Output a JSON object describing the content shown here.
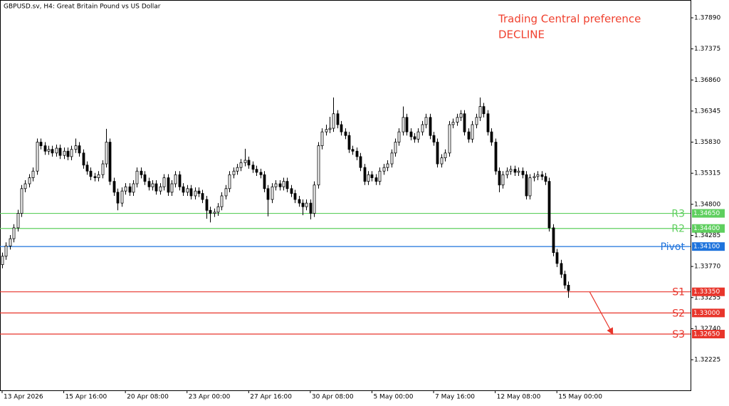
{
  "chart_data": {
    "type": "candlestick",
    "title": "GBPUSD.sv, H4:  Great Britain Pound vs US Dollar",
    "annotations": [
      "Trading Central preference",
      "DECLINE"
    ],
    "annotation_color": "#f0412f",
    "up_color": "#ffffff",
    "down_color": "#000000",
    "ylim": [
      1.31718,
      1.38185
    ],
    "yticks": [
      {
        "value": 1.3789,
        "label": "1.37890"
      },
      1.37375,
      {
        "value": 1.3686,
        "label": "1.36860"
      },
      1.36345,
      {
        "value": 1.3583,
        "label": "1.35830"
      },
      1.35315,
      {
        "value": 1.348,
        "label": "1.34800"
      },
      1.34285,
      {
        "value": 1.3377,
        "label": "1.33770"
      },
      1.33255,
      {
        "value": 1.3274,
        "label": "1.32740"
      },
      1.32225
    ],
    "xlim": [
      -0.55,
      178.7
    ],
    "xticks": [
      {
        "value": 0,
        "label": "13 Apr 2026"
      },
      {
        "value": 16,
        "label": "15 Apr 16:00"
      },
      {
        "value": 32,
        "label": "20 Apr 08:00"
      },
      {
        "value": 48,
        "label": "23 Apr 00:00"
      },
      {
        "value": 64,
        "label": "27 Apr 16:00"
      },
      {
        "value": 80,
        "label": "30 Apr 08:00"
      },
      {
        "value": 96,
        "label": "5 May 00:00"
      },
      {
        "value": 112,
        "label": "7 May 16:00"
      },
      {
        "value": 128,
        "label": "12 May 08:00"
      },
      {
        "value": 144,
        "label": "15 May 00:00"
      }
    ],
    "levels": [
      {
        "name": "R3",
        "value": 1.3465,
        "label": "1.34650",
        "color": "#5fcf5f"
      },
      {
        "name": "R2",
        "value": 1.344,
        "label": "1.34400",
        "color": "#5fcf5f"
      },
      {
        "name": "Pivot",
        "value": 1.341,
        "label": "1.34100",
        "color": "#1e73dc"
      },
      {
        "name": "S1",
        "value": 1.3335,
        "label": "1.33350",
        "color": "#e8352b"
      },
      {
        "name": "S2",
        "value": 1.33,
        "label": "1.33000",
        "color": "#e8352b"
      },
      {
        "name": "S3",
        "value": 1.3265,
        "label": "1.32650",
        "color": "#e8352b"
      }
    ],
    "ohlc": [
      [
        1.338,
        1.34,
        1.3374,
        1.3394
      ],
      [
        1.3394,
        1.3417,
        1.3388,
        1.3411
      ],
      [
        1.3411,
        1.3429,
        1.3405,
        1.3423
      ],
      [
        1.3423,
        1.3447,
        1.3417,
        1.3441
      ],
      [
        1.3441,
        1.3471,
        1.3435,
        1.3465
      ],
      [
        1.3465,
        1.3512,
        1.3459,
        1.3506
      ],
      [
        1.3506,
        1.352,
        1.35,
        1.3514
      ],
      [
        1.3514,
        1.353,
        1.3508,
        1.3524
      ],
      [
        1.3524,
        1.3541,
        1.3518,
        1.3535
      ],
      [
        1.3535,
        1.3589,
        1.3529,
        1.3583
      ],
      [
        1.3583,
        1.3589,
        1.3571,
        1.3577
      ],
      [
        1.3577,
        1.3583,
        1.3562,
        1.3568
      ],
      [
        1.3568,
        1.3577,
        1.3562,
        1.3571
      ],
      [
        1.3571,
        1.3577,
        1.3559,
        1.3565
      ],
      [
        1.3565,
        1.3579,
        1.3559,
        1.3573
      ],
      [
        1.3573,
        1.3579,
        1.3555,
        1.3561
      ],
      [
        1.3561,
        1.3574,
        1.3555,
        1.3568
      ],
      [
        1.3568,
        1.3574,
        1.3553,
        1.3559
      ],
      [
        1.3559,
        1.3577,
        1.3553,
        1.3571
      ],
      [
        1.3571,
        1.3589,
        1.3565,
        1.3577
      ],
      [
        1.3577,
        1.3583,
        1.3559,
        1.3565
      ],
      [
        1.3565,
        1.3571,
        1.3539,
        1.3545
      ],
      [
        1.3545,
        1.3551,
        1.3529,
        1.3535
      ],
      [
        1.3535,
        1.3541,
        1.352,
        1.3526
      ],
      [
        1.3526,
        1.3532,
        1.3518,
        1.3524
      ],
      [
        1.3524,
        1.3535,
        1.3518,
        1.3529
      ],
      [
        1.3529,
        1.3553,
        1.3523,
        1.3547
      ],
      [
        1.3547,
        1.3605,
        1.3541,
        1.3583
      ],
      [
        1.3583,
        1.3589,
        1.3512,
        1.3518
      ],
      [
        1.3518,
        1.3524,
        1.3494,
        1.35
      ],
      [
        1.35,
        1.3506,
        1.347,
        1.3482
      ],
      [
        1.3482,
        1.3508,
        1.3476,
        1.3502
      ],
      [
        1.3502,
        1.3515,
        1.3496,
        1.3509
      ],
      [
        1.3509,
        1.3515,
        1.3494,
        1.35
      ],
      [
        1.35,
        1.352,
        1.3494,
        1.3514
      ],
      [
        1.3514,
        1.3541,
        1.3508,
        1.3535
      ],
      [
        1.3535,
        1.3541,
        1.3523,
        1.3529
      ],
      [
        1.3529,
        1.3535,
        1.3512,
        1.3518
      ],
      [
        1.3518,
        1.3524,
        1.3503,
        1.3509
      ],
      [
        1.3509,
        1.352,
        1.3503,
        1.3514
      ],
      [
        1.3514,
        1.352,
        1.3496,
        1.3502
      ],
      [
        1.3502,
        1.3515,
        1.3496,
        1.3509
      ],
      [
        1.3509,
        1.353,
        1.3503,
        1.3524
      ],
      [
        1.3524,
        1.353,
        1.3494,
        1.35
      ],
      [
        1.35,
        1.352,
        1.3494,
        1.3514
      ],
      [
        1.3514,
        1.3535,
        1.3508,
        1.3529
      ],
      [
        1.3529,
        1.3535,
        1.3503,
        1.3509
      ],
      [
        1.3509,
        1.3515,
        1.3494,
        1.35
      ],
      [
        1.35,
        1.3512,
        1.3494,
        1.3506
      ],
      [
        1.3506,
        1.3512,
        1.3488,
        1.3494
      ],
      [
        1.3494,
        1.3508,
        1.3488,
        1.3502
      ],
      [
        1.3502,
        1.3508,
        1.3492,
        1.3498
      ],
      [
        1.3498,
        1.3504,
        1.3482,
        1.3488
      ],
      [
        1.3488,
        1.3494,
        1.3456,
        1.347
      ],
      [
        1.347,
        1.3476,
        1.345,
        1.3465
      ],
      [
        1.3465,
        1.3473,
        1.3459,
        1.3467
      ],
      [
        1.3467,
        1.3482,
        1.3461,
        1.3476
      ],
      [
        1.3476,
        1.35,
        1.347,
        1.3494
      ],
      [
        1.3494,
        1.3512,
        1.3488,
        1.3506
      ],
      [
        1.3506,
        1.3535,
        1.35,
        1.3529
      ],
      [
        1.3529,
        1.3541,
        1.3523,
        1.3535
      ],
      [
        1.3535,
        1.3547,
        1.3529,
        1.3541
      ],
      [
        1.3541,
        1.3555,
        1.3535,
        1.3549
      ],
      [
        1.3549,
        1.3572,
        1.3543,
        1.3553
      ],
      [
        1.3553,
        1.3559,
        1.3539,
        1.3545
      ],
      [
        1.3545,
        1.3551,
        1.3532,
        1.3538
      ],
      [
        1.3538,
        1.3544,
        1.3527,
        1.3533
      ],
      [
        1.3533,
        1.3539,
        1.3523,
        1.3529
      ],
      [
        1.3529,
        1.3535,
        1.35,
        1.3506
      ],
      [
        1.3506,
        1.3512,
        1.346,
        1.3488
      ],
      [
        1.3488,
        1.3515,
        1.3482,
        1.3509
      ],
      [
        1.3509,
        1.352,
        1.3503,
        1.3514
      ],
      [
        1.3514,
        1.352,
        1.3503,
        1.3509
      ],
      [
        1.3509,
        1.3524,
        1.3503,
        1.3518
      ],
      [
        1.3518,
        1.3524,
        1.35,
        1.3506
      ],
      [
        1.3506,
        1.3512,
        1.3492,
        1.3498
      ],
      [
        1.3498,
        1.3504,
        1.3482,
        1.3488
      ],
      [
        1.3488,
        1.3494,
        1.3476,
        1.3482
      ],
      [
        1.3482,
        1.3488,
        1.3462,
        1.3476
      ],
      [
        1.3476,
        1.3488,
        1.347,
        1.3482
      ],
      [
        1.3482,
        1.3488,
        1.3455,
        1.3465
      ],
      [
        1.3465,
        1.3518,
        1.3459,
        1.3512
      ],
      [
        1.3512,
        1.3583,
        1.3506,
        1.3577
      ],
      [
        1.3577,
        1.3606,
        1.3571,
        1.36
      ],
      [
        1.36,
        1.3612,
        1.3594,
        1.3604
      ],
      [
        1.3604,
        1.3625,
        1.3598,
        1.3606
      ],
      [
        1.3606,
        1.3657,
        1.36,
        1.363
      ],
      [
        1.363,
        1.3636,
        1.3606,
        1.3612
      ],
      [
        1.3612,
        1.3618,
        1.3594,
        1.36
      ],
      [
        1.36,
        1.3606,
        1.3588,
        1.3594
      ],
      [
        1.3594,
        1.36,
        1.3565,
        1.3571
      ],
      [
        1.3571,
        1.3577,
        1.3562,
        1.3568
      ],
      [
        1.3568,
        1.3574,
        1.3553,
        1.3559
      ],
      [
        1.3559,
        1.3565,
        1.3535,
        1.3541
      ],
      [
        1.3541,
        1.3547,
        1.3512,
        1.3518
      ],
      [
        1.3518,
        1.3535,
        1.3512,
        1.3529
      ],
      [
        1.3529,
        1.3535,
        1.3518,
        1.3524
      ],
      [
        1.3524,
        1.353,
        1.3512,
        1.3518
      ],
      [
        1.3518,
        1.3541,
        1.3512,
        1.3535
      ],
      [
        1.3535,
        1.3547,
        1.3529,
        1.3541
      ],
      [
        1.3541,
        1.3553,
        1.3535,
        1.3547
      ],
      [
        1.3547,
        1.3571,
        1.3541,
        1.3565
      ],
      [
        1.3565,
        1.3589,
        1.3559,
        1.3583
      ],
      [
        1.3583,
        1.3606,
        1.3577,
        1.36
      ],
      [
        1.36,
        1.3642,
        1.3594,
        1.3624
      ],
      [
        1.3624,
        1.363,
        1.3594,
        1.36
      ],
      [
        1.36,
        1.3606,
        1.3586,
        1.3592
      ],
      [
        1.3592,
        1.3598,
        1.3582,
        1.3588
      ],
      [
        1.3588,
        1.3606,
        1.3582,
        1.36
      ],
      [
        1.36,
        1.3618,
        1.3594,
        1.3612
      ],
      [
        1.3612,
        1.363,
        1.3606,
        1.3624
      ],
      [
        1.3624,
        1.363,
        1.3588,
        1.3594
      ],
      [
        1.3594,
        1.36,
        1.3577,
        1.3583
      ],
      [
        1.3583,
        1.3589,
        1.3541,
        1.3547
      ],
      [
        1.3547,
        1.3563,
        1.3541,
        1.3557
      ],
      [
        1.3557,
        1.3571,
        1.3551,
        1.3565
      ],
      [
        1.3565,
        1.3618,
        1.3559,
        1.3612
      ],
      [
        1.3612,
        1.3622,
        1.3606,
        1.3616
      ],
      [
        1.3616,
        1.363,
        1.361,
        1.3624
      ],
      [
        1.3624,
        1.3636,
        1.3618,
        1.363
      ],
      [
        1.363,
        1.3636,
        1.3594,
        1.36
      ],
      [
        1.36,
        1.3606,
        1.3582,
        1.3588
      ],
      [
        1.3588,
        1.3618,
        1.3582,
        1.3612
      ],
      [
        1.3612,
        1.363,
        1.3606,
        1.3624
      ],
      [
        1.3624,
        1.3657,
        1.3618,
        1.3642
      ],
      [
        1.3642,
        1.3648,
        1.3624,
        1.363
      ],
      [
        1.363,
        1.3636,
        1.3594,
        1.36
      ],
      [
        1.36,
        1.3606,
        1.3577,
        1.3583
      ],
      [
        1.3583,
        1.3589,
        1.3529,
        1.3535
      ],
      [
        1.3535,
        1.3541,
        1.35,
        1.3512
      ],
      [
        1.3512,
        1.3535,
        1.3506,
        1.3529
      ],
      [
        1.3529,
        1.3541,
        1.3523,
        1.3535
      ],
      [
        1.3535,
        1.3544,
        1.3529,
        1.3538
      ],
      [
        1.3538,
        1.3544,
        1.3527,
        1.3533
      ],
      [
        1.3533,
        1.3541,
        1.3527,
        1.3535
      ],
      [
        1.3535,
        1.3541,
        1.3523,
        1.3529
      ],
      [
        1.3529,
        1.3535,
        1.3488,
        1.3494
      ],
      [
        1.3494,
        1.353,
        1.3488,
        1.3524
      ],
      [
        1.3524,
        1.3532,
        1.3518,
        1.3526
      ],
      [
        1.3526,
        1.3535,
        1.352,
        1.3529
      ],
      [
        1.3529,
        1.3535,
        1.352,
        1.3526
      ],
      [
        1.3526,
        1.3532,
        1.3512,
        1.3518
      ],
      [
        1.3518,
        1.3524,
        1.3435,
        1.3441
      ],
      [
        1.3441,
        1.3447,
        1.3394,
        1.34
      ],
      [
        1.34,
        1.3406,
        1.3376,
        1.3382
      ],
      [
        1.3382,
        1.3388,
        1.3358,
        1.3364
      ],
      [
        1.3364,
        1.337,
        1.334,
        1.3346
      ],
      [
        1.3346,
        1.3352,
        1.3325,
        1.3337
      ]
    ]
  }
}
